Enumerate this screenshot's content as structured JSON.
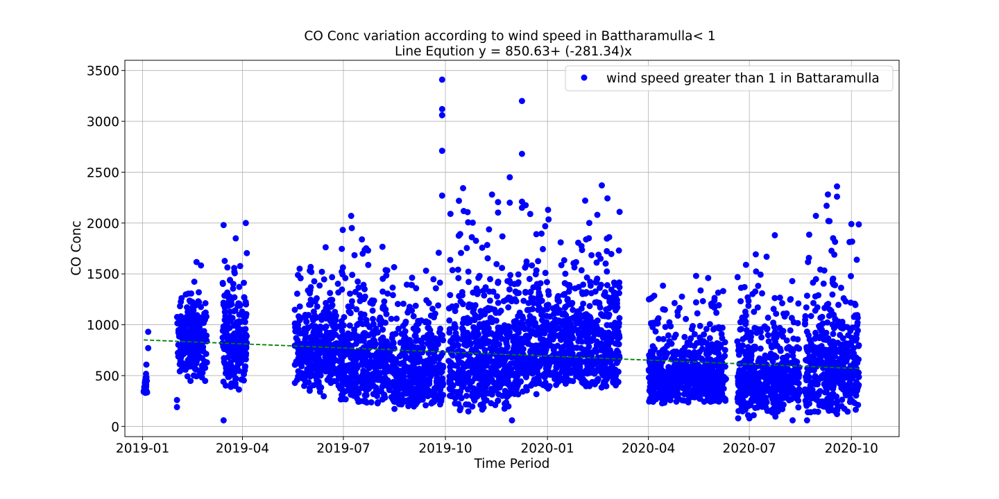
{
  "chart_data": {
    "type": "scatter",
    "title": "CO Conc variation according to wind speed in Battharamulla< 1",
    "subtitle": "Line Eqution y = 850.63+ (-281.34)x",
    "xlabel": "Time Period",
    "ylabel": "CO Conc",
    "x_type": "date",
    "xlim": [
      "2018-12-16",
      "2020-11-13"
    ],
    "ylim": [
      -100,
      3600
    ],
    "x_ticks": [
      {
        "label": "2019-01",
        "date": "2019-01-01"
      },
      {
        "label": "2019-04",
        "date": "2019-04-01"
      },
      {
        "label": "2019-07",
        "date": "2019-07-01"
      },
      {
        "label": "2019-10",
        "date": "2019-10-01"
      },
      {
        "label": "2020-01",
        "date": "2020-01-01"
      },
      {
        "label": "2020-04",
        "date": "2020-04-01"
      },
      {
        "label": "2020-07",
        "date": "2020-07-01"
      },
      {
        "label": "2020-10",
        "date": "2020-10-01"
      }
    ],
    "y_ticks": [
      0,
      500,
      1000,
      1500,
      2000,
      2500,
      3000,
      3500
    ],
    "grid": true,
    "legend_position": "top-right",
    "series": [
      {
        "name": "wind speed greater than 1 in Battaramulla",
        "color": "#0000ff",
        "marker": "circle",
        "clusters": [
          {
            "start": "2019-01-02",
            "end": "2019-01-05",
            "low": 330,
            "high": 930,
            "median": 380
          },
          {
            "start": "2019-02-01",
            "end": "2019-02-28",
            "low": 180,
            "high": 1670,
            "median": 850
          },
          {
            "start": "2019-03-14",
            "end": "2019-04-05",
            "low": 60,
            "high": 2000,
            "median": 880
          },
          {
            "start": "2019-05-18",
            "end": "2019-06-25",
            "low": 250,
            "high": 1800,
            "median": 760
          },
          {
            "start": "2019-06-26",
            "end": "2019-08-12",
            "low": 220,
            "high": 2070,
            "median": 640
          },
          {
            "start": "2019-08-13",
            "end": "2019-09-29",
            "low": 160,
            "high": 1870,
            "median": 560
          },
          {
            "start": "2019-10-04",
            "end": "2019-11-30",
            "low": 60,
            "high": 2450,
            "median": 650
          },
          {
            "start": "2019-12-01",
            "end": "2020-01-04",
            "low": 280,
            "high": 2210,
            "median": 790
          },
          {
            "start": "2020-01-05",
            "end": "2020-03-06",
            "low": 380,
            "high": 2370,
            "median": 820
          },
          {
            "start": "2020-04-01",
            "end": "2020-06-10",
            "low": 220,
            "high": 1480,
            "median": 520
          },
          {
            "start": "2020-06-20",
            "end": "2020-08-15",
            "low": 60,
            "high": 1880,
            "median": 480
          },
          {
            "start": "2020-08-20",
            "end": "2020-10-08",
            "low": 60,
            "high": 2360,
            "median": 560
          }
        ],
        "points": [
          {
            "x": "2019-09-28",
            "y": 3410
          },
          {
            "x": "2019-09-28",
            "y": 3120
          },
          {
            "x": "2019-09-28",
            "y": 3060
          },
          {
            "x": "2019-09-28",
            "y": 2710
          },
          {
            "x": "2019-09-28",
            "y": 2270
          },
          {
            "x": "2019-12-09",
            "y": 3200
          },
          {
            "x": "2019-12-09",
            "y": 2680
          },
          {
            "x": "2019-12-09",
            "y": 2210
          },
          {
            "x": "2019-12-09",
            "y": 2150
          },
          {
            "x": "2019-11-28",
            "y": 2450
          },
          {
            "x": "2019-11-28",
            "y": 2200
          },
          {
            "x": "2019-11-12",
            "y": 2280
          },
          {
            "x": "2020-02-19",
            "y": 2370
          },
          {
            "x": "2020-02-04",
            "y": 2220
          },
          {
            "x": "2020-03-06",
            "y": 2110
          },
          {
            "x": "2019-07-08",
            "y": 2070
          },
          {
            "x": "2019-04-04",
            "y": 2000
          },
          {
            "x": "2019-03-15",
            "y": 1980
          },
          {
            "x": "2020-09-18",
            "y": 2360
          },
          {
            "x": "2020-09-18",
            "y": 2260
          },
          {
            "x": "2020-08-30",
            "y": 2070
          },
          {
            "x": "2020-10-01",
            "y": 1990
          },
          {
            "x": "2020-07-24",
            "y": 1880
          },
          {
            "x": "2020-05-14",
            "y": 1480
          },
          {
            "x": "2020-05-14",
            "y": 1220
          },
          {
            "x": "2019-03-15",
            "y": 60
          },
          {
            "x": "2019-01-06",
            "y": 930
          },
          {
            "x": "2019-01-06",
            "y": 770
          },
          {
            "x": "2019-01-03",
            "y": 430
          },
          {
            "x": "2019-01-03",
            "y": 400
          },
          {
            "x": "2019-01-03",
            "y": 340
          },
          {
            "x": "2019-01-05",
            "y": 335
          },
          {
            "x": "2019-02-01",
            "y": 260
          },
          {
            "x": "2019-02-01",
            "y": 190
          },
          {
            "x": "2019-10-14",
            "y": 160
          },
          {
            "x": "2019-11-30",
            "y": 60
          },
          {
            "x": "2020-07-01",
            "y": 80
          },
          {
            "x": "2020-08-22",
            "y": 60
          },
          {
            "x": "2020-08-09",
            "y": 60
          }
        ]
      },
      {
        "name": "",
        "type": "line",
        "style": "dashed",
        "color": "#008000",
        "x": [
          "2019-01-02",
          "2020-10-08"
        ],
        "y": [
          850.63,
          569.29
        ]
      }
    ]
  }
}
